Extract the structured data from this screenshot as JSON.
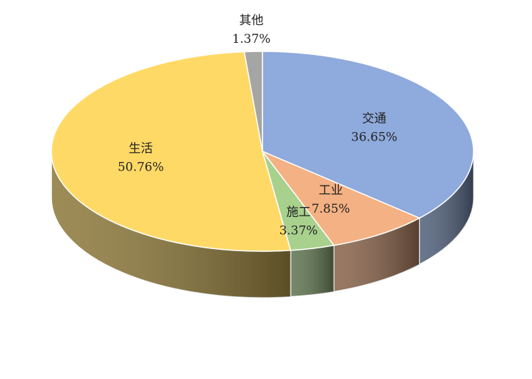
{
  "chart_data": {
    "type": "pie3d",
    "categories": [
      "交通",
      "工业",
      "施工",
      "生活",
      "其他"
    ],
    "values": [
      36.65,
      7.85,
      3.37,
      50.76,
      1.37
    ],
    "value_labels": [
      "36.65%",
      "7.85%",
      "3.37%",
      "50.76%",
      "1.37%"
    ],
    "colors": [
      "#8faadc",
      "#f4b183",
      "#a9d18e",
      "#ffd966",
      "#a5a5a5"
    ]
  }
}
